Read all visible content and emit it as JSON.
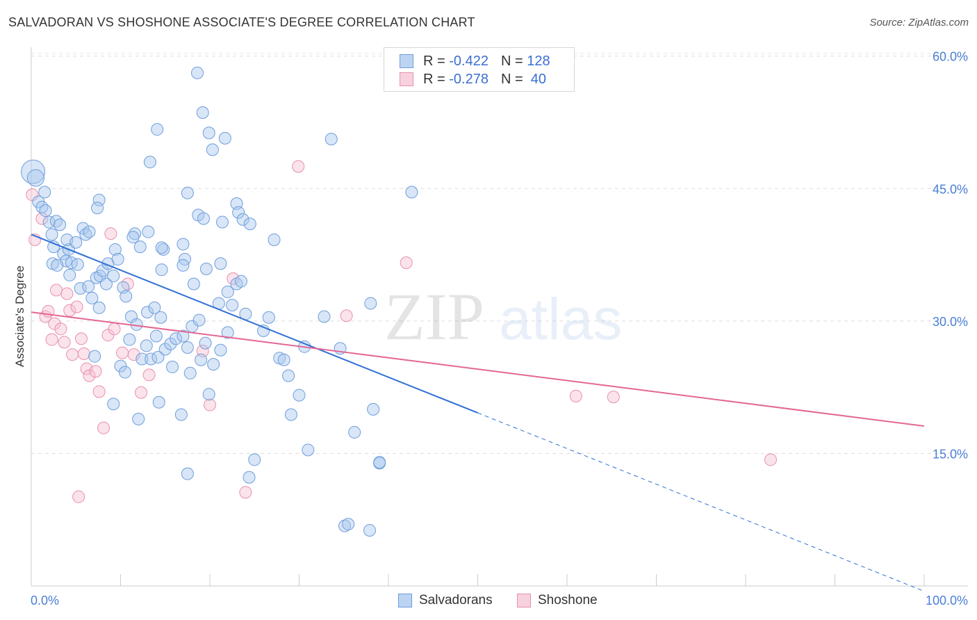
{
  "header": {
    "title": "SALVADORAN VS SHOSHONE ASSOCIATE'S DEGREE CORRELATION CHART",
    "source": "Source: ZipAtlas.com"
  },
  "colors": {
    "blue": "#a9c8ee",
    "blue_stroke": "#6f9ddc",
    "blue_line": "#2f6fd6",
    "pink": "#f6c1d2",
    "pink_stroke": "#e88fae",
    "pink_line": "#e36694",
    "axis_text": "#4a7fd6"
  },
  "legend_top": {
    "rows": [
      {
        "r_label": "R =",
        "r_value": "-0.422",
        "n_label": "N =",
        "n_value": "128"
      },
      {
        "r_label": "R =",
        "r_value": "-0.278",
        "n_label": "N =",
        "n_value": "40"
      }
    ]
  },
  "legend_bottom": {
    "items": [
      "Salvadorans",
      "Shoshone"
    ]
  },
  "chart_data": {
    "type": "scatter",
    "title": "SALVADORAN VS SHOSHONE ASSOCIATE'S DEGREE CORRELATION CHART",
    "xlabel": "",
    "ylabel": "Associate's Degree",
    "xlim": [
      0,
      100
    ],
    "ylim": [
      0,
      61
    ],
    "x_tick_labels": [
      "0.0%",
      "100.0%"
    ],
    "y_ticks": [
      15,
      30,
      45,
      60
    ],
    "y_tick_labels": [
      "15.0%",
      "30.0%",
      "45.0%",
      "60.0%"
    ],
    "grid": true,
    "legend_position": "top-center",
    "watermark": "ZIPatlas",
    "series": [
      {
        "name": "Salvadorans",
        "r": -0.422,
        "n": 128,
        "trend": {
          "x0": 0,
          "y0": 39.8,
          "x1": 50,
          "y1": 19.6,
          "dashed_to_x": 100,
          "dashed_to_y": -0.6
        },
        "points": [
          [
            0.2,
            46.9
          ],
          [
            0.5,
            46.2
          ],
          [
            1.5,
            44.6
          ],
          [
            0.8,
            43.5
          ],
          [
            1.2,
            42.9
          ],
          [
            1.6,
            42.5
          ],
          [
            2.0,
            41.2
          ],
          [
            2.3,
            39.8
          ],
          [
            2.8,
            41.3
          ],
          [
            2.5,
            38.4
          ],
          [
            3.2,
            40.9
          ],
          [
            3.6,
            37.6
          ],
          [
            3.9,
            36.8
          ],
          [
            4.2,
            38.1
          ],
          [
            4.0,
            39.2
          ],
          [
            4.5,
            36.6
          ],
          [
            5.0,
            38.9
          ],
          [
            5.8,
            40.5
          ],
          [
            6.1,
            39.8
          ],
          [
            6.5,
            40.1
          ],
          [
            2.4,
            36.5
          ],
          [
            2.9,
            36.3
          ],
          [
            4.3,
            35.2
          ],
          [
            5.2,
            36.4
          ],
          [
            5.5,
            33.7
          ],
          [
            6.4,
            33.9
          ],
          [
            6.8,
            32.6
          ],
          [
            7.3,
            34.9
          ],
          [
            7.7,
            35.1
          ],
          [
            8.4,
            34.2
          ],
          [
            8.0,
            35.7
          ],
          [
            8.6,
            36.5
          ],
          [
            9.2,
            35.1
          ],
          [
            9.4,
            38.1
          ],
          [
            9.7,
            37.0
          ],
          [
            10.3,
            33.8
          ],
          [
            10.6,
            32.8
          ],
          [
            11.2,
            30.5
          ],
          [
            11.8,
            29.6
          ],
          [
            13.0,
            31.0
          ],
          [
            13.8,
            31.5
          ],
          [
            14.5,
            30.4
          ],
          [
            14.0,
            28.3
          ],
          [
            15.0,
            26.8
          ],
          [
            15.6,
            27.4
          ],
          [
            16.2,
            28.0
          ],
          [
            17.0,
            28.3
          ],
          [
            18.0,
            29.4
          ],
          [
            17.5,
            27.0
          ],
          [
            18.8,
            30.1
          ],
          [
            19.5,
            27.5
          ],
          [
            20.4,
            25.1
          ],
          [
            12.9,
            27.2
          ],
          [
            12.4,
            25.7
          ],
          [
            13.4,
            25.7
          ],
          [
            14.2,
            25.9
          ],
          [
            10.0,
            24.9
          ],
          [
            10.5,
            24.2
          ],
          [
            15.8,
            24.8
          ],
          [
            17.8,
            24.1
          ],
          [
            7.6,
            31.5
          ],
          [
            7.1,
            26.0
          ],
          [
            9.2,
            20.6
          ],
          [
            11.0,
            27.9
          ],
          [
            12.0,
            18.9
          ],
          [
            14.3,
            20.8
          ],
          [
            16.8,
            19.4
          ],
          [
            19.9,
            21.7
          ],
          [
            17.5,
            12.7
          ],
          [
            21.2,
            26.7
          ],
          [
            19.0,
            25.6
          ],
          [
            22.0,
            28.7
          ],
          [
            22.5,
            31.8
          ],
          [
            23.0,
            34.2
          ],
          [
            23.5,
            34.5
          ],
          [
            24.0,
            30.8
          ],
          [
            26.0,
            28.9
          ],
          [
            26.6,
            30.4
          ],
          [
            27.8,
            25.8
          ],
          [
            28.3,
            25.6
          ],
          [
            28.8,
            23.8
          ],
          [
            29.1,
            19.4
          ],
          [
            30.0,
            21.6
          ],
          [
            30.6,
            27.1
          ],
          [
            31.0,
            15.4
          ],
          [
            32.8,
            30.5
          ],
          [
            34.6,
            26.9
          ],
          [
            35.1,
            6.8
          ],
          [
            36.2,
            17.4
          ],
          [
            38.0,
            32.0
          ],
          [
            38.3,
            20.0
          ],
          [
            39.0,
            13.9
          ],
          [
            25.0,
            14.3
          ],
          [
            24.4,
            12.3
          ],
          [
            27.2,
            39.2
          ],
          [
            23.0,
            43.3
          ],
          [
            23.2,
            42.3
          ],
          [
            23.7,
            41.5
          ],
          [
            24.5,
            41.0
          ],
          [
            21.4,
            41.2
          ],
          [
            17.5,
            44.5
          ],
          [
            17.2,
            37.0
          ],
          [
            17.0,
            38.7
          ],
          [
            14.8,
            38.1
          ],
          [
            14.6,
            38.3
          ],
          [
            14.6,
            35.8
          ],
          [
            13.1,
            40.1
          ],
          [
            11.6,
            39.9
          ],
          [
            12.2,
            38.4
          ],
          [
            11.4,
            39.5
          ],
          [
            7.6,
            43.7
          ],
          [
            7.4,
            42.8
          ],
          [
            18.7,
            42.0
          ],
          [
            19.3,
            41.6
          ],
          [
            17.0,
            36.3
          ],
          [
            19.6,
            35.9
          ],
          [
            21.2,
            36.5
          ],
          [
            21.0,
            32.0
          ],
          [
            18.2,
            34.2
          ],
          [
            22.0,
            33.3
          ],
          [
            13.3,
            48.0
          ],
          [
            14.1,
            51.7
          ],
          [
            18.6,
            58.1
          ],
          [
            19.2,
            53.6
          ],
          [
            19.9,
            51.3
          ],
          [
            20.3,
            49.4
          ],
          [
            21.7,
            50.7
          ],
          [
            33.6,
            50.6
          ],
          [
            42.6,
            44.6
          ],
          [
            35.5,
            7.0
          ],
          [
            37.9,
            6.3
          ],
          [
            39.0,
            14.0
          ]
        ]
      },
      {
        "name": "Shoshone",
        "r": -0.278,
        "n": 40,
        "trend": {
          "x0": 0,
          "y0": 31.0,
          "x1": 100,
          "y1": 18.1
        },
        "points": [
          [
            0.1,
            44.3
          ],
          [
            0.4,
            39.2
          ],
          [
            1.2,
            41.6
          ],
          [
            1.6,
            30.5
          ],
          [
            1.9,
            31.1
          ],
          [
            2.3,
            27.9
          ],
          [
            2.6,
            29.7
          ],
          [
            2.8,
            33.5
          ],
          [
            3.3,
            29.1
          ],
          [
            3.7,
            27.6
          ],
          [
            4.0,
            33.1
          ],
          [
            4.3,
            31.2
          ],
          [
            4.6,
            26.2
          ],
          [
            5.1,
            31.6
          ],
          [
            5.6,
            28.0
          ],
          [
            5.9,
            26.3
          ],
          [
            6.2,
            24.6
          ],
          [
            6.5,
            23.8
          ],
          [
            7.2,
            24.3
          ],
          [
            7.6,
            22.0
          ],
          [
            8.1,
            17.9
          ],
          [
            8.6,
            28.4
          ],
          [
            8.9,
            39.9
          ],
          [
            9.3,
            29.1
          ],
          [
            10.2,
            26.4
          ],
          [
            10.8,
            34.2
          ],
          [
            11.5,
            26.2
          ],
          [
            12.3,
            21.9
          ],
          [
            13.2,
            23.9
          ],
          [
            19.2,
            26.6
          ],
          [
            20.0,
            20.5
          ],
          [
            22.6,
            34.8
          ],
          [
            24.0,
            10.6
          ],
          [
            29.9,
            47.5
          ],
          [
            35.3,
            30.6
          ],
          [
            42.0,
            36.6
          ],
          [
            61.0,
            21.5
          ],
          [
            65.2,
            21.4
          ],
          [
            82.8,
            14.3
          ],
          [
            5.3,
            10.1
          ]
        ]
      }
    ]
  }
}
